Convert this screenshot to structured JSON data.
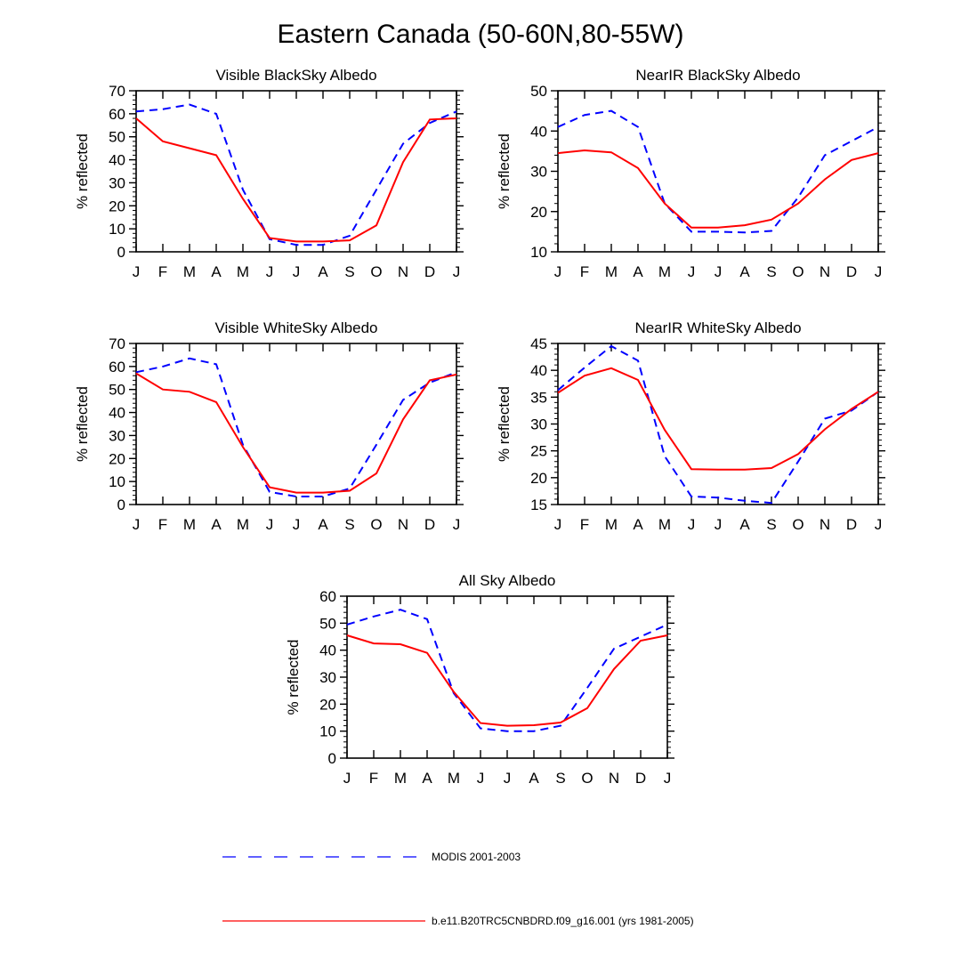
{
  "title": "Eastern Canada (50-60N,80-55W)",
  "legend": [
    {
      "label": "MODIS 2001-2003",
      "color": "#0000ff",
      "style": "dashed"
    },
    {
      "label": "b.e11.B20TRC5CNBDRD.f09_g16.001 (yrs 1981-2005)",
      "color": "#ff0000",
      "style": "solid"
    }
  ],
  "colors": {
    "modis": "#0000ff",
    "model": "#ff0000"
  },
  "chart_data": [
    {
      "type": "line",
      "title": "Visible BlackSky Albedo",
      "ylabel": "% reflected",
      "ylim": [
        0,
        70
      ],
      "yticks": [
        0,
        10,
        20,
        30,
        40,
        50,
        60,
        70
      ],
      "categories": [
        "J",
        "F",
        "M",
        "A",
        "M",
        "J",
        "J",
        "A",
        "S",
        "O",
        "N",
        "D",
        "J"
      ],
      "series": [
        {
          "name": "MODIS 2001-2003",
          "values": [
            61,
            62,
            64,
            60,
            27,
            5.5,
            3,
            3,
            7,
            27,
            47,
            56,
            61
          ]
        },
        {
          "name": "b.e11.B20TRC5CNBDRD.f09_g16.001 (yrs 1981-2005)",
          "values": [
            58,
            48,
            45,
            42,
            23,
            6,
            4.5,
            4.5,
            5,
            11.5,
            39,
            57.5,
            58
          ]
        }
      ]
    },
    {
      "type": "line",
      "title": "NearIR BlackSky Albedo",
      "ylabel": "% reflected",
      "ylim": [
        10,
        50
      ],
      "yticks": [
        10,
        20,
        30,
        40,
        50
      ],
      "categories": [
        "J",
        "F",
        "M",
        "A",
        "M",
        "J",
        "J",
        "A",
        "S",
        "O",
        "N",
        "D",
        "J"
      ],
      "series": [
        {
          "name": "MODIS 2001-2003",
          "values": [
            41,
            44,
            45,
            41,
            22,
            15,
            15,
            14.8,
            15.2,
            23.5,
            34,
            37.5,
            41
          ]
        },
        {
          "name": "b.e11.B20TRC5CNBDRD.f09_g16.001 (yrs 1981-2005)",
          "values": [
            34.5,
            35.2,
            34.7,
            30.8,
            22,
            16,
            16,
            16.6,
            18,
            22,
            28,
            32.8,
            34.5
          ]
        }
      ]
    },
    {
      "type": "line",
      "title": "Visible WhiteSky Albedo",
      "ylabel": "% reflected",
      "ylim": [
        0,
        70
      ],
      "yticks": [
        0,
        10,
        20,
        30,
        40,
        50,
        60,
        70
      ],
      "categories": [
        "J",
        "F",
        "M",
        "A",
        "M",
        "J",
        "J",
        "A",
        "S",
        "O",
        "N",
        "D",
        "J"
      ],
      "series": [
        {
          "name": "MODIS 2001-2003",
          "values": [
            57.5,
            60,
            63.5,
            61,
            26,
            5.5,
            3.5,
            3.5,
            7,
            26,
            45.5,
            53,
            57.5
          ]
        },
        {
          "name": "b.e11.B20TRC5CNBDRD.f09_g16.001 (yrs 1981-2005)",
          "values": [
            57,
            50,
            49,
            44.5,
            25,
            7.5,
            5.2,
            5.2,
            6,
            13.5,
            37,
            54,
            56.5
          ]
        }
      ]
    },
    {
      "type": "line",
      "title": "NearIR WhiteSky Albedo",
      "ylabel": "% reflected",
      "ylim": [
        15,
        45
      ],
      "yticks": [
        15,
        20,
        25,
        30,
        35,
        40,
        45
      ],
      "categories": [
        "J",
        "F",
        "M",
        "A",
        "M",
        "J",
        "J",
        "A",
        "S",
        "O",
        "N",
        "D",
        "J"
      ],
      "series": [
        {
          "name": "MODIS 2001-2003",
          "values": [
            36.3,
            40.5,
            44.5,
            41.8,
            24,
            16.5,
            16.3,
            15.7,
            15.3,
            23,
            31,
            32.5,
            36
          ]
        },
        {
          "name": "b.e11.B20TRC5CNBDRD.f09_g16.001 (yrs 1981-2005)",
          "values": [
            35.8,
            39,
            40.4,
            38.2,
            28.9,
            21.6,
            21.5,
            21.5,
            21.8,
            24.4,
            29,
            32.8,
            36
          ]
        }
      ]
    },
    {
      "type": "line",
      "title": "All Sky Albedo",
      "ylabel": "% reflected",
      "ylim": [
        0,
        60
      ],
      "yticks": [
        0,
        10,
        20,
        30,
        40,
        50,
        60
      ],
      "categories": [
        "J",
        "F",
        "M",
        "A",
        "M",
        "J",
        "J",
        "A",
        "S",
        "O",
        "N",
        "D",
        "J"
      ],
      "series": [
        {
          "name": "MODIS 2001-2003",
          "values": [
            49.5,
            52.5,
            55,
            51.5,
            24,
            11,
            10,
            10,
            12,
            26,
            40.5,
            45,
            49.5
          ]
        },
        {
          "name": "b.e11.B20TRC5CNBDRD.f09_g16.001 (yrs 1981-2005)",
          "values": [
            45.5,
            42.5,
            42.2,
            39,
            24.5,
            13,
            12,
            12.2,
            13.2,
            18.5,
            33,
            43.5,
            45.5
          ]
        }
      ]
    }
  ]
}
